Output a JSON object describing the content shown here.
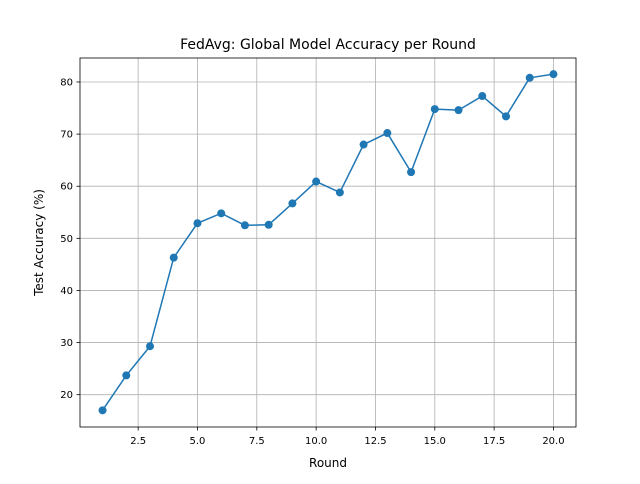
{
  "chart_data": {
    "type": "line",
    "title": "FedAvg: Global Model Accuracy per Round",
    "xlabel": "Round",
    "ylabel": "Test Accuracy (%)",
    "xlim": [
      0.05,
      20.95
    ],
    "ylim": [
      13.8,
      84.6
    ],
    "xticks": [
      2.5,
      5.0,
      7.5,
      10.0,
      12.5,
      15.0,
      17.5,
      20.0
    ],
    "xtick_labels": [
      "2.5",
      "5.0",
      "7.5",
      "10.0",
      "12.5",
      "15.0",
      "17.5",
      "20.0"
    ],
    "yticks": [
      20,
      30,
      40,
      50,
      60,
      70,
      80
    ],
    "ytick_labels": [
      "20",
      "30",
      "40",
      "50",
      "60",
      "70",
      "80"
    ],
    "grid": true,
    "color": "#1f77b4",
    "series": [
      {
        "x": [
          1,
          2,
          3,
          4,
          5,
          6,
          7,
          8,
          9,
          10,
          11,
          12,
          13,
          14,
          15,
          16,
          17,
          18,
          19,
          20
        ],
        "values": [
          17.0,
          23.7,
          29.3,
          46.3,
          52.9,
          54.8,
          52.5,
          52.6,
          56.7,
          60.9,
          58.8,
          68.0,
          70.2,
          62.7,
          74.8,
          74.6,
          77.3,
          73.4,
          80.8,
          81.5
        ]
      }
    ]
  }
}
